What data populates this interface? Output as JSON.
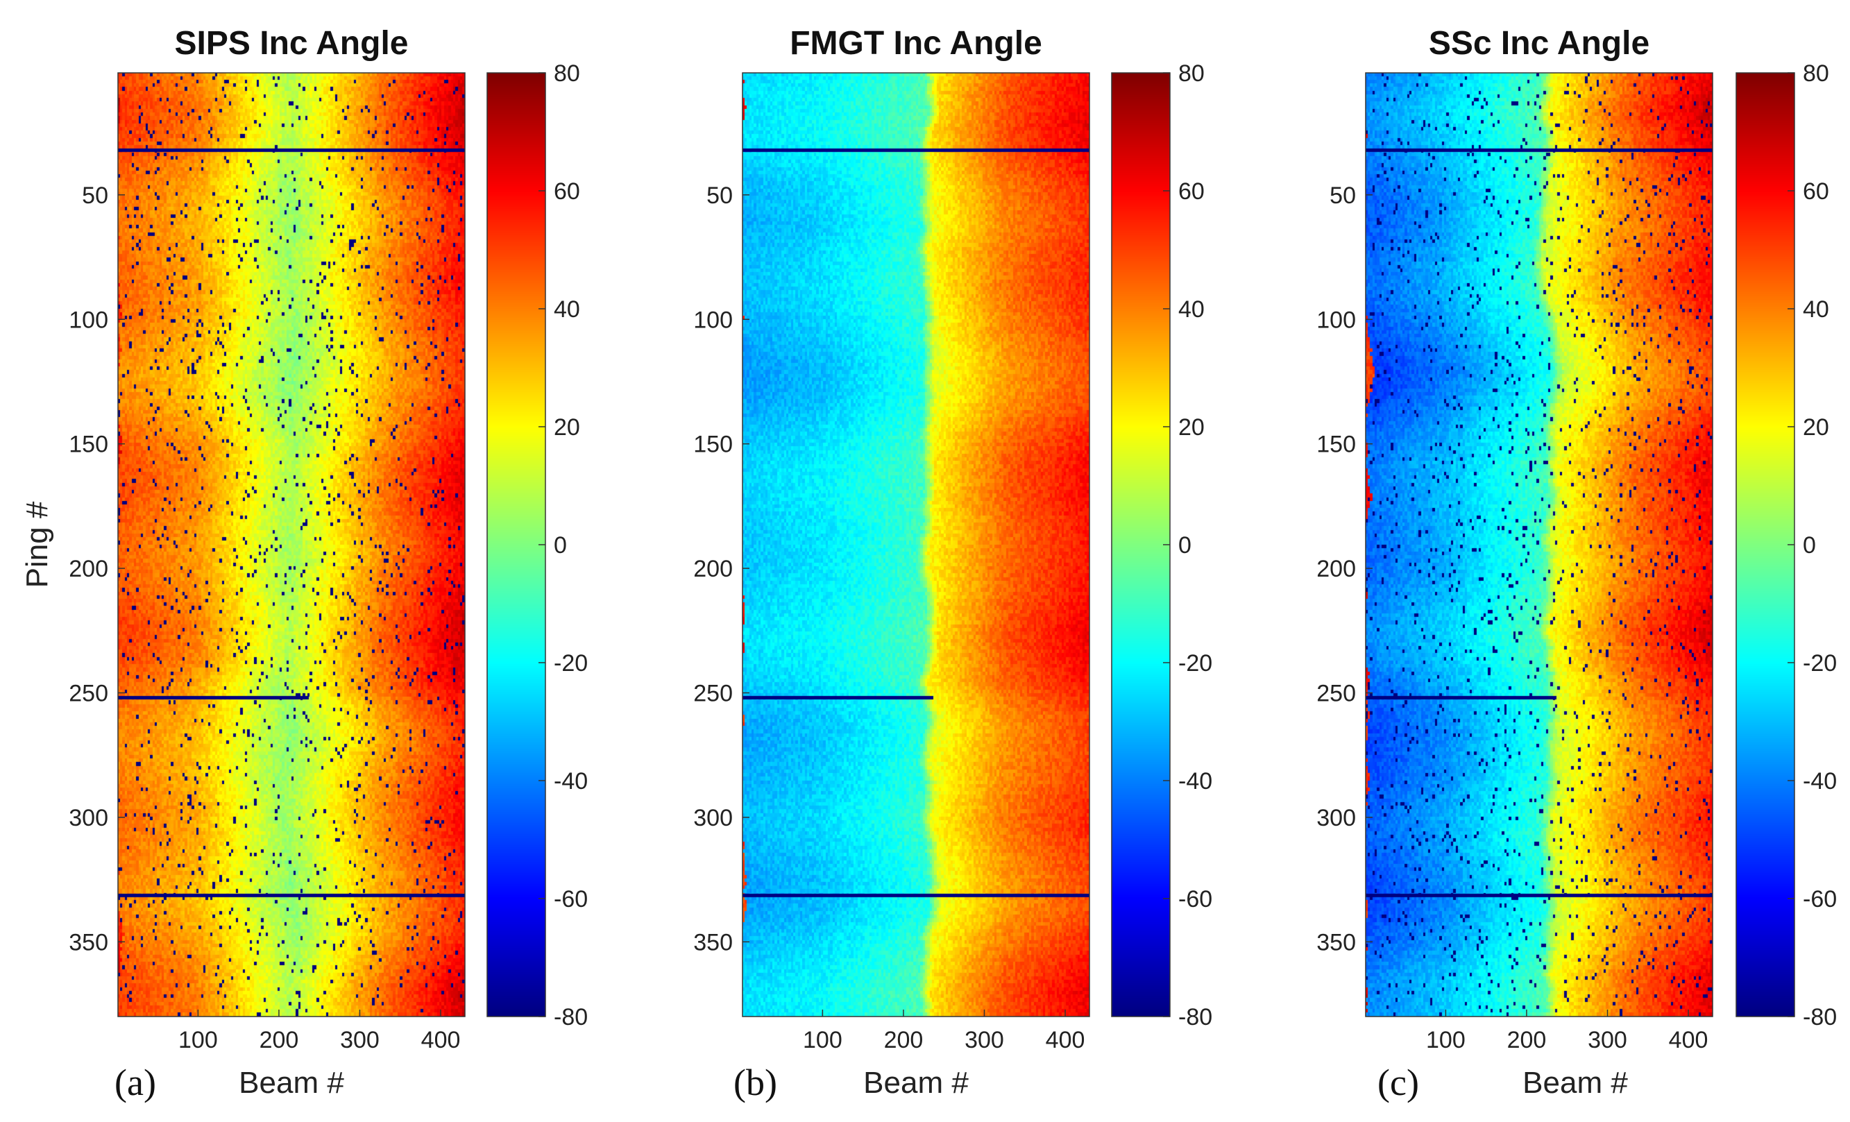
{
  "figure": {
    "ylabel": "Ping #",
    "xlabel": "Beam #",
    "colors": {
      "nodata": "#00008f",
      "jet_stops": [
        "#00008f",
        "#0000ff",
        "#00ffff",
        "#ffff00",
        "#ff0000",
        "#800000"
      ]
    }
  },
  "chart_data": [
    {
      "type": "heatmap",
      "panel_label": "(a)",
      "title": "SIPS Inc Angle",
      "xlabel": "Beam #",
      "ylabel": "Ping #",
      "x_range": [
        1,
        430
      ],
      "y_range": [
        1,
        380
      ],
      "x_ticks": [
        100,
        200,
        300,
        400
      ],
      "y_ticks": [
        50,
        100,
        150,
        200,
        250,
        300,
        350
      ],
      "colorbar": {
        "range": [
          -80,
          80
        ],
        "ticks": [
          80,
          60,
          40,
          20,
          0,
          -20,
          -40,
          -60,
          -80
        ],
        "colormap": "jet"
      },
      "pattern": {
        "description": "symmetric about nadir",
        "profile": [
          [
            0,
            45
          ],
          [
            100,
            35
          ],
          [
            215,
            5
          ],
          [
            330,
            38
          ],
          [
            430,
            60
          ]
        ],
        "nadir_beam": 215,
        "nodata_fraction": 0.04
      }
    },
    {
      "type": "heatmap",
      "panel_label": "(b)",
      "title": "FMGT Inc Angle",
      "xlabel": "Beam #",
      "x_range": [
        1,
        430
      ],
      "y_range": [
        1,
        380
      ],
      "x_ticks": [
        100,
        200,
        300,
        400
      ],
      "y_ticks": [
        50,
        100,
        150,
        200,
        250,
        300,
        350
      ],
      "colorbar": {
        "range": [
          -80,
          80
        ],
        "ticks": [
          80,
          60,
          40,
          20,
          0,
          -20,
          -40,
          -60,
          -80
        ],
        "colormap": "jet"
      },
      "pattern": {
        "description": "signed across nadir",
        "profile": [
          [
            0,
            -30
          ],
          [
            100,
            -25
          ],
          [
            225,
            -12
          ],
          [
            240,
            20
          ],
          [
            330,
            42
          ],
          [
            430,
            55
          ]
        ],
        "nadir_beam": 235,
        "nodata_fraction": 0.0
      }
    },
    {
      "type": "heatmap",
      "panel_label": "(c)",
      "title": "SSc Inc Angle",
      "xlabel": "Beam #",
      "x_range": [
        1,
        430
      ],
      "y_range": [
        1,
        380
      ],
      "x_ticks": [
        100,
        200,
        300,
        400
      ],
      "y_ticks": [
        50,
        100,
        150,
        200,
        250,
        300,
        350
      ],
      "colorbar": {
        "range": [
          -80,
          80
        ],
        "ticks": [
          80,
          60,
          40,
          20,
          0,
          -20,
          -40,
          -60,
          -80
        ],
        "colormap": "jet"
      },
      "pattern": {
        "description": "signed across nadir",
        "profile": [
          [
            0,
            -45
          ],
          [
            100,
            -33
          ],
          [
            220,
            -12
          ],
          [
            235,
            15
          ],
          [
            330,
            40
          ],
          [
            430,
            58
          ]
        ],
        "nadir_beam": 228,
        "nodata_fraction": 0.04
      }
    }
  ]
}
